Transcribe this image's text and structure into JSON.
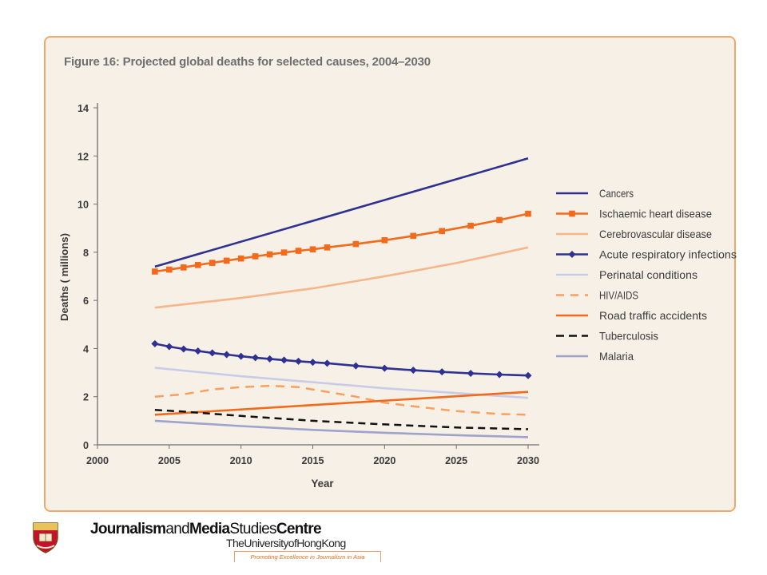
{
  "figure": {
    "title": "Figure 16: Projected global deaths for selected causes, 2004–2030"
  },
  "chart_data": {
    "type": "line",
    "xlabel": "Year",
    "ylabel": "Deaths ( millions)",
    "xlim": [
      2000,
      2030
    ],
    "ylim": [
      0,
      14
    ],
    "x_ticks": [
      2000,
      2005,
      2010,
      2015,
      2020,
      2025,
      2030
    ],
    "y_ticks": [
      0,
      2,
      4,
      6,
      8,
      10,
      12,
      14
    ],
    "grid": false,
    "legend_position": "right",
    "series": [
      {
        "name": "Cancers",
        "color": "#2e3192",
        "style": "solid",
        "marker": "none",
        "x": [
          2004,
          2030
        ],
        "values": [
          7.4,
          11.9
        ]
      },
      {
        "name": "Ischaemic heart disease",
        "color": "#f26a1b",
        "style": "solid",
        "marker": "square",
        "x": [
          2004,
          2005,
          2006,
          2007,
          2008,
          2009,
          2010,
          2011,
          2012,
          2013,
          2014,
          2015,
          2016,
          2018,
          2020,
          2022,
          2024,
          2026,
          2028,
          2030
        ],
        "values": [
          7.2,
          7.28,
          7.37,
          7.47,
          7.56,
          7.65,
          7.74,
          7.83,
          7.91,
          7.99,
          8.06,
          8.12,
          8.2,
          8.34,
          8.5,
          8.68,
          8.88,
          9.1,
          9.34,
          9.6
        ]
      },
      {
        "name": "Cerebrovascular disease",
        "color": "#f7b58a",
        "style": "solid",
        "marker": "none",
        "x": [
          2004,
          2010,
          2015,
          2020,
          2025,
          2030
        ],
        "values": [
          5.7,
          6.1,
          6.5,
          7.0,
          7.55,
          8.2
        ]
      },
      {
        "name": "Acute respiratory infections",
        "color": "#2e3192",
        "style": "solid",
        "marker": "diamond",
        "x": [
          2004,
          2005,
          2006,
          2007,
          2008,
          2009,
          2010,
          2011,
          2012,
          2013,
          2014,
          2015,
          2016,
          2018,
          2020,
          2022,
          2024,
          2026,
          2028,
          2030
        ],
        "values": [
          4.2,
          4.08,
          3.98,
          3.9,
          3.82,
          3.75,
          3.68,
          3.62,
          3.57,
          3.52,
          3.47,
          3.43,
          3.39,
          3.28,
          3.18,
          3.1,
          3.03,
          2.97,
          2.92,
          2.88
        ]
      },
      {
        "name": "Perinatal conditions",
        "color": "#c8cce8",
        "style": "solid",
        "marker": "none",
        "x": [
          2004,
          2010,
          2015,
          2020,
          2025,
          2030
        ],
        "values": [
          3.2,
          2.85,
          2.6,
          2.35,
          2.15,
          1.95
        ]
      },
      {
        "name": "HIV/AIDS",
        "color": "#f7a060",
        "style": "dashed",
        "marker": "none",
        "x": [
          2004,
          2006,
          2008,
          2010,
          2012,
          2014,
          2016,
          2018,
          2020,
          2022,
          2025,
          2028,
          2030
        ],
        "values": [
          2.0,
          2.1,
          2.3,
          2.4,
          2.45,
          2.4,
          2.2,
          2.0,
          1.75,
          1.6,
          1.4,
          1.28,
          1.25
        ]
      },
      {
        "name": "Road traffic accidents",
        "color": "#f26a1b",
        "style": "solid",
        "marker": "none",
        "x": [
          2004,
          2030
        ],
        "values": [
          1.25,
          2.2
        ]
      },
      {
        "name": "Tuberculosis",
        "color": "#111111",
        "style": "dashed",
        "marker": "none",
        "x": [
          2004,
          2006,
          2010,
          2015,
          2020,
          2025,
          2030
        ],
        "values": [
          1.45,
          1.38,
          1.2,
          1.0,
          0.85,
          0.72,
          0.65
        ]
      },
      {
        "name": "Malaria",
        "color": "#9ea3cc",
        "style": "solid",
        "marker": "none",
        "x": [
          2004,
          2010,
          2015,
          2020,
          2025,
          2030
        ],
        "values": [
          1.0,
          0.78,
          0.62,
          0.5,
          0.4,
          0.32
        ]
      }
    ]
  },
  "footer": {
    "org_word1": "Journalism",
    "org_word2": "and",
    "org_word3": "Media",
    "org_word4": "Studies",
    "org_word5": "Centre",
    "uni_word1": "The",
    "uni_word2": "University",
    "uni_word3": "of",
    "uni_word4": "Hong",
    "uni_word5": "Kong",
    "tagline": "Promoting Excellence in Journalism in Asia",
    "crest_icon": "university-crest-icon"
  }
}
